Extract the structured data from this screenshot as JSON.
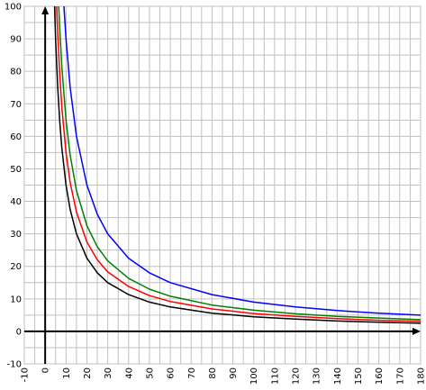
{
  "chart_data": {
    "type": "line",
    "title": "",
    "xlabel": "",
    "ylabel": "",
    "xlim": [
      -10,
      180
    ],
    "ylim": [
      -10,
      100
    ],
    "grid": true,
    "x_ticks": [
      "-10",
      "0",
      "10",
      "20",
      "30",
      "40",
      "50",
      "60",
      "70",
      "80",
      "90",
      "100",
      "110",
      "120",
      "130",
      "140",
      "150",
      "160",
      "170",
      "180"
    ],
    "y_ticks": [
      "-10",
      "0",
      "10",
      "20",
      "30",
      "40",
      "50",
      "60",
      "70",
      "80",
      "90",
      "100"
    ],
    "series": [
      {
        "color": "#000000",
        "x": [
          4.5,
          5,
          6,
          7,
          8,
          10,
          12,
          15,
          20,
          25,
          30,
          40,
          50,
          60,
          80,
          100,
          120,
          140,
          160,
          180
        ],
        "y": [
          100,
          90,
          75,
          64.3,
          56.3,
          45,
          37.5,
          30,
          22.5,
          18,
          15,
          11.3,
          9,
          7.5,
          5.6,
          4.5,
          3.8,
          3.2,
          2.8,
          2.5
        ]
      },
      {
        "color": "#ff0000",
        "x": [
          5.5,
          6,
          7,
          8,
          10,
          12,
          15,
          20,
          25,
          30,
          40,
          50,
          60,
          80,
          100,
          120,
          140,
          160,
          180
        ],
        "y": [
          100,
          91.7,
          78.6,
          68.8,
          55,
          45.8,
          36.7,
          27.5,
          22,
          18.3,
          13.8,
          11,
          9.2,
          6.9,
          5.5,
          4.6,
          3.9,
          3.4,
          3.1
        ]
      },
      {
        "color": "#008000",
        "x": [
          6.5,
          7,
          8,
          10,
          12,
          15,
          20,
          25,
          30,
          40,
          50,
          60,
          80,
          100,
          120,
          140,
          160,
          180
        ],
        "y": [
          100,
          92.9,
          81.3,
          65,
          54.2,
          43.3,
          32.5,
          26,
          21.7,
          16.3,
          13,
          10.8,
          8.1,
          6.5,
          5.4,
          4.6,
          4.1,
          3.6
        ]
      },
      {
        "color": "#0000ff",
        "x": [
          9,
          10,
          12,
          15,
          20,
          25,
          30,
          40,
          50,
          60,
          80,
          100,
          120,
          140,
          160,
          180
        ],
        "y": [
          100,
          90,
          75,
          60,
          45,
          36,
          30,
          22.5,
          18,
          15,
          11.3,
          9,
          7.5,
          6.4,
          5.6,
          5
        ]
      }
    ]
  }
}
